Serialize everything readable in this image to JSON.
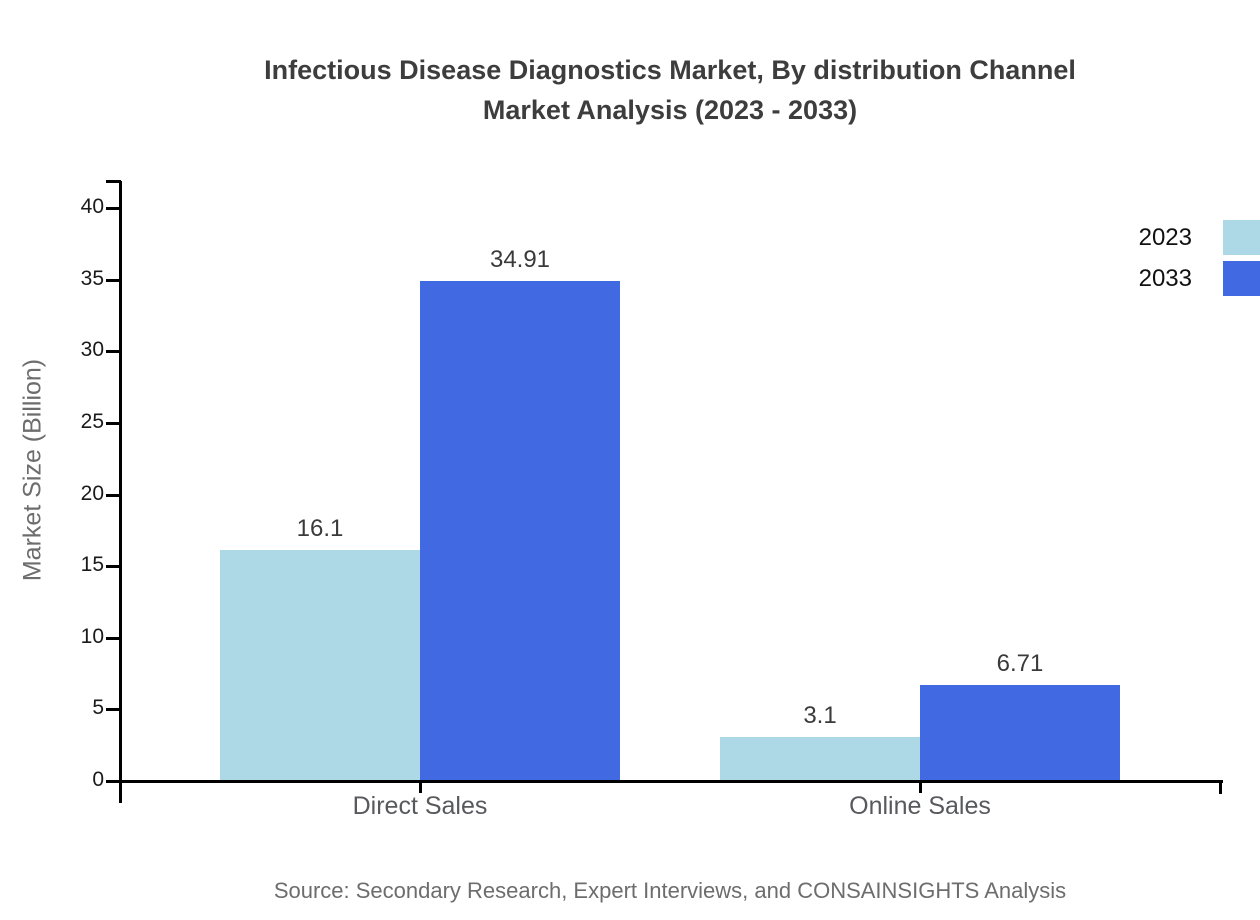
{
  "title": {
    "line1": "Infectious Disease Diagnostics Market, By distribution Channel",
    "line2": "Market Analysis (2023 - 2033)"
  },
  "source_note": "Source: Secondary Research, Expert Interviews, and CONSAINSIGHTS Analysis",
  "chart_data": {
    "type": "bar",
    "title": "Infectious Disease Diagnostics Market, By distribution Channel Market Analysis (2023 - 2033)",
    "categories": [
      "Direct Sales",
      "Online Sales"
    ],
    "series": [
      {
        "name": "2023",
        "color": "#add8e6",
        "values": [
          16.1,
          3.1
        ]
      },
      {
        "name": "2033",
        "color": "#4169e1",
        "values": [
          34.91,
          6.71
        ]
      }
    ],
    "bar_value_labels": [
      [
        "16.1",
        "3.1"
      ],
      [
        "34.91",
        "6.71"
      ]
    ],
    "xlabel": "",
    "ylabel": "Market Size (Billion)",
    "ylim": [
      0,
      40
    ],
    "yticks": [
      0,
      5,
      10,
      15,
      20,
      25,
      30,
      35,
      40
    ],
    "grid": false,
    "legend_position": "top-right",
    "legend_entries": [
      "2023",
      "2033"
    ]
  },
  "colors": {
    "axis": "#000000",
    "title_text": "#3d3d3d",
    "muted_text": "#6d6d6d",
    "category_text": "#58595d",
    "tick_text": "#1a1a1a",
    "bar_label_text": "#3a3a3a",
    "legend_text": "#111111"
  }
}
